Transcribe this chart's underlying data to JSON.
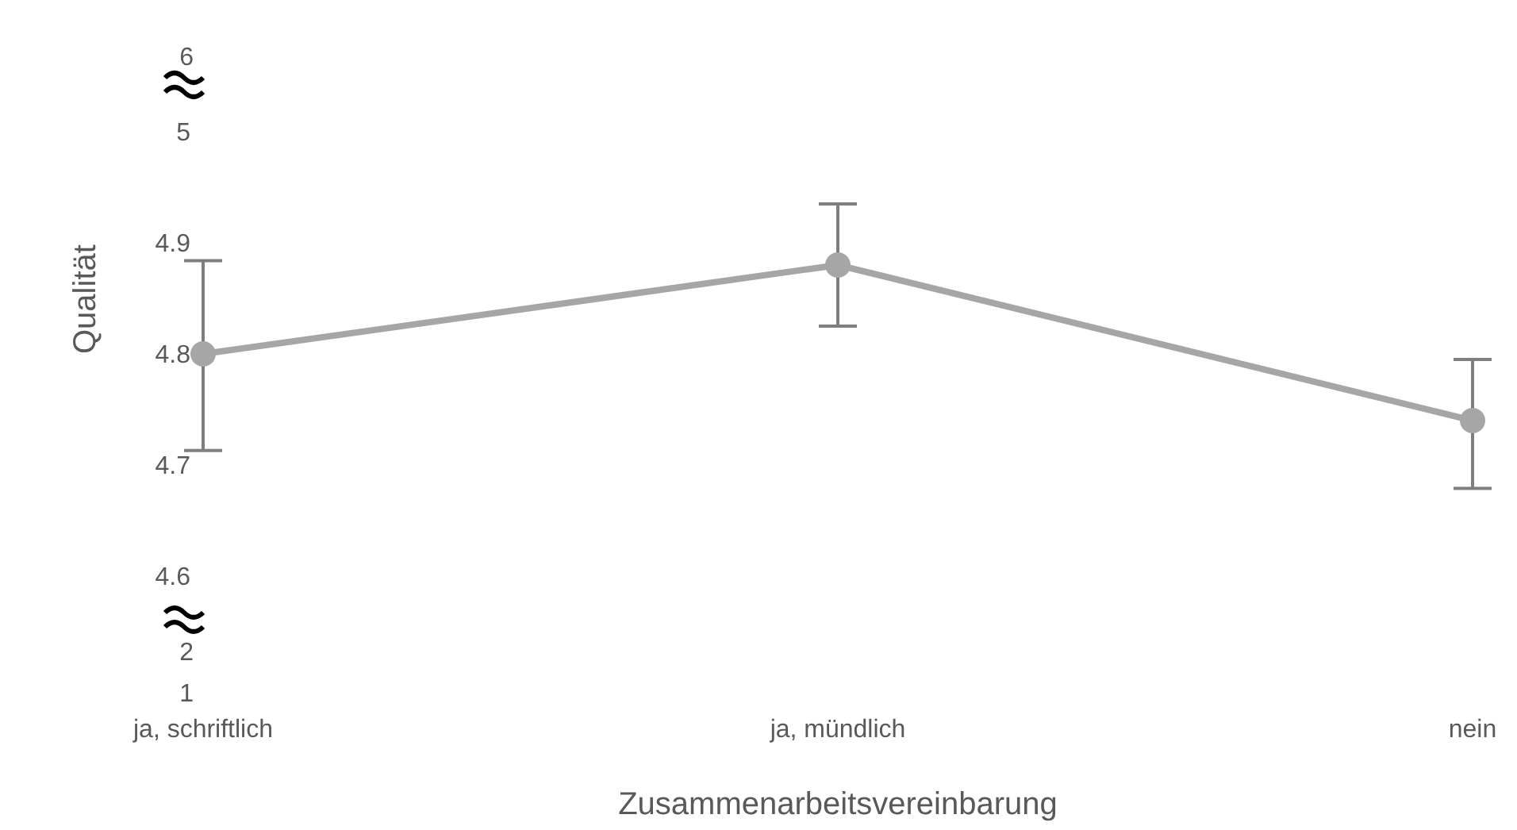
{
  "chart_data": {
    "type": "line",
    "xlabel": "Zusammenarbeitsvereinbarung",
    "ylabel": "Qualität",
    "categories": [
      "ja, schriftlich",
      "ja, mündlich",
      "nein"
    ],
    "series": [
      {
        "color": "#a6a6a6",
        "values": [
          4.8,
          4.88,
          4.74
        ],
        "errors": [
          [
            4.713,
            4.884
          ],
          [
            4.825,
            4.935
          ],
          [
            4.679,
            4.795
          ]
        ]
      }
    ],
    "ylim": [
      4.6,
      5
    ],
    "yticks": [
      4.6,
      4.7,
      4.8,
      4.9,
      5
    ],
    "marker": "circle",
    "line_style": "solid",
    "grid": false,
    "legend": false,
    "annotations": [
      "6",
      "2",
      "1"
    ]
  }
}
